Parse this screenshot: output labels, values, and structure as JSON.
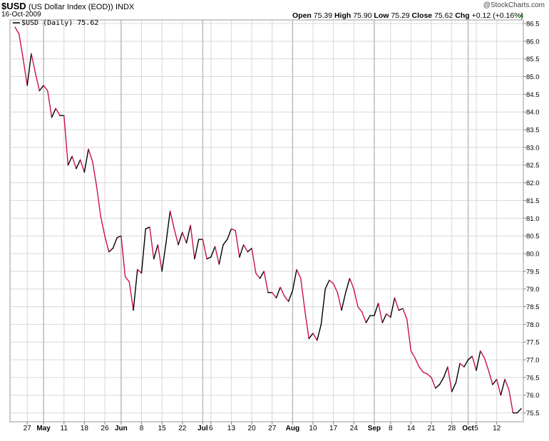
{
  "header": {
    "ticker": "$USD",
    "description": "(US Dollar Index (EOD))",
    "exchange": "INDX",
    "date": "16-Oct-2009",
    "copyright": "@StockCharts.com",
    "quote": {
      "open_label": "Open",
      "open": "75.39",
      "high_label": "High",
      "high": "75.90",
      "low_label": "Low",
      "low": "75.29",
      "close_label": "Close",
      "close": "75.62",
      "chg_label": "Chg",
      "chg": "+0.12 (+0.16%)"
    }
  },
  "legend": {
    "label": "$USD (Daily) 75.62"
  },
  "colors": {
    "up": "#000000",
    "down": "#cc1144",
    "grid": "#d8d8d8"
  },
  "chart_data": {
    "type": "line",
    "title": "",
    "xlabel": "",
    "ylabel": "",
    "ylim": [
      75.25,
      86.6
    ],
    "y_ticks": [
      75.5,
      76.0,
      76.5,
      77.0,
      77.5,
      78.0,
      78.5,
      79.0,
      79.5,
      80.0,
      80.5,
      81.0,
      81.5,
      82.0,
      82.5,
      83.0,
      83.5,
      84.0,
      84.5,
      85.0,
      85.5,
      86.0,
      86.5
    ],
    "y_tick_labels": [
      "75.5",
      "76.0",
      "76.5",
      "77.0",
      "77.5",
      "78.0",
      "78.5",
      "79.0",
      "79.5",
      "80.0",
      "80.5",
      "81.0",
      "81.5",
      "82.0",
      "82.5",
      "83.0",
      "83.5",
      "84.0",
      "84.5",
      "85.0",
      "85.5",
      "86.0",
      "86.5"
    ],
    "x_ticks": [
      {
        "label": "27",
        "i": 3,
        "bold": false
      },
      {
        "label": "May",
        "i": 7,
        "bold": true
      },
      {
        "label": "11",
        "i": 12,
        "bold": false
      },
      {
        "label": "18",
        "i": 17,
        "bold": false
      },
      {
        "label": "26",
        "i": 22,
        "bold": false
      },
      {
        "label": "Jun",
        "i": 26,
        "bold": true
      },
      {
        "label": "8",
        "i": 31,
        "bold": false
      },
      {
        "label": "15",
        "i": 36,
        "bold": false
      },
      {
        "label": "22",
        "i": 41,
        "bold": false
      },
      {
        "label": "Jul",
        "i": 46,
        "bold": true
      },
      {
        "label": "6",
        "i": 48,
        "bold": false
      },
      {
        "label": "13",
        "i": 53,
        "bold": false
      },
      {
        "label": "20",
        "i": 58,
        "bold": false
      },
      {
        "label": "27",
        "i": 63,
        "bold": false
      },
      {
        "label": "Aug",
        "i": 68,
        "bold": true
      },
      {
        "label": "10",
        "i": 73,
        "bold": false
      },
      {
        "label": "17",
        "i": 78,
        "bold": false
      },
      {
        "label": "24",
        "i": 83,
        "bold": false
      },
      {
        "label": "Sep",
        "i": 88,
        "bold": true
      },
      {
        "label": "8",
        "i": 92,
        "bold": false
      },
      {
        "label": "14",
        "i": 97,
        "bold": false
      },
      {
        "label": "21",
        "i": 102,
        "bold": false
      },
      {
        "label": "28",
        "i": 107,
        "bold": false
      },
      {
        "label": "Oct",
        "i": 111,
        "bold": true
      },
      {
        "label": "5",
        "i": 113,
        "bold": false
      },
      {
        "label": "12",
        "i": 118,
        "bold": false
      }
    ],
    "month_lines": [
      7,
      26,
      46,
      68,
      88,
      111
    ],
    "series": [
      {
        "name": "$USD (Daily)",
        "values": [
          86.4,
          86.2,
          85.5,
          84.75,
          85.65,
          85.1,
          84.6,
          84.75,
          84.6,
          83.85,
          84.1,
          83.9,
          83.9,
          82.5,
          82.75,
          82.4,
          82.65,
          82.3,
          82.95,
          82.6,
          81.9,
          81.05,
          80.5,
          80.05,
          80.15,
          80.45,
          80.5,
          79.35,
          79.2,
          78.4,
          79.55,
          79.45,
          80.7,
          80.75,
          79.85,
          80.25,
          79.5,
          80.3,
          81.2,
          80.7,
          80.25,
          80.6,
          80.3,
          80.8,
          79.85,
          80.4,
          80.4,
          79.85,
          79.9,
          80.2,
          79.7,
          80.25,
          80.4,
          80.7,
          80.65,
          79.9,
          80.25,
          80.05,
          80.15,
          79.45,
          79.3,
          79.5,
          78.9,
          78.9,
          78.75,
          79.05,
          78.8,
          78.65,
          78.95,
          79.55,
          79.3,
          78.4,
          77.6,
          77.75,
          77.55,
          78.0,
          79.0,
          79.25,
          79.15,
          78.9,
          78.4,
          78.9,
          79.3,
          79.0,
          78.5,
          78.35,
          78.05,
          78.25,
          78.25,
          78.6,
          78.05,
          78.3,
          78.2,
          78.75,
          78.4,
          78.45,
          78.15,
          77.25,
          77.05,
          76.8,
          76.65,
          76.6,
          76.5,
          76.2,
          76.3,
          76.5,
          76.8,
          76.1,
          76.35,
          76.9,
          76.8,
          77.0,
          77.1,
          76.7,
          77.25,
          77.05,
          76.7,
          76.3,
          76.45,
          76.0,
          76.45,
          76.15,
          75.5,
          75.5,
          75.62
        ]
      }
    ],
    "grid": true,
    "legend_position": "top-left"
  }
}
